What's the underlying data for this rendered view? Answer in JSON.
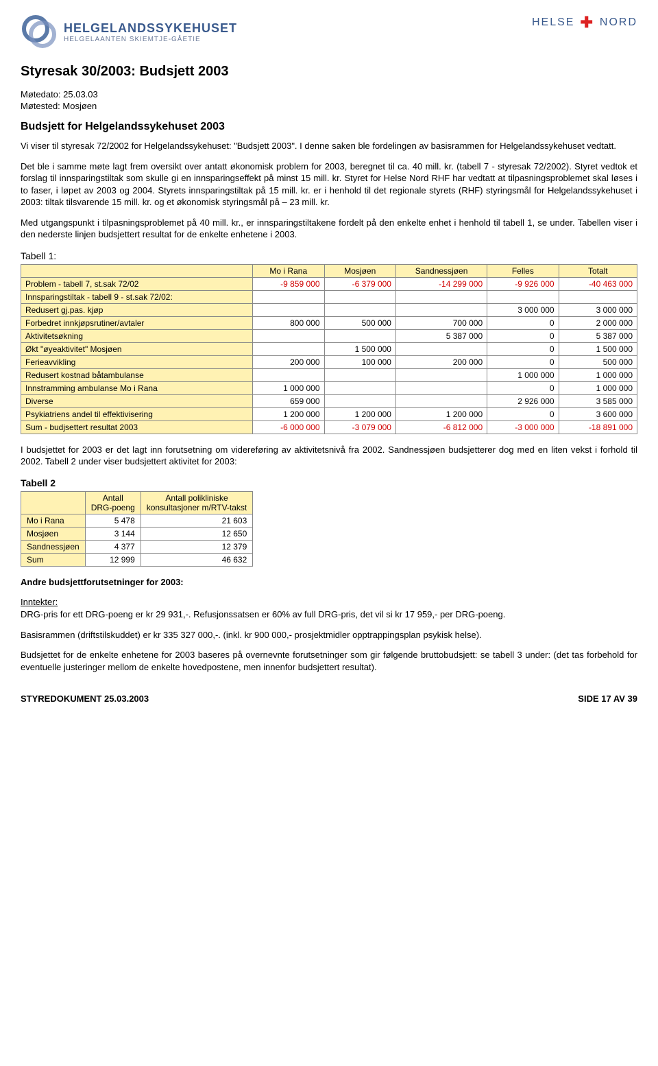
{
  "header": {
    "logo_main": "HELGELANDSSYKEHUSET",
    "logo_sub": "HELGELAANTEN SKIEMTJE-GÅETIE",
    "right_brand_1": "HELSE",
    "right_brand_2": "NORD"
  },
  "title": "Styresak 30/2003: Budsjett 2003",
  "meta": {
    "date_label": "Møtedato: 25.03.03",
    "place_label": "Møtested: Mosjøen"
  },
  "subtitle": "Budsjett for Helgelandssykehuset 2003",
  "para1": "Vi viser til styresak 72/2002 for Helgelandssykehuset: \"Budsjett 2003\". I denne saken ble fordelingen av basisrammen for Helgelandssykehuset vedtatt.",
  "para2": "Det ble i samme møte lagt frem oversikt over antatt økonomisk problem for 2003, beregnet til ca. 40 mill. kr. (tabell 7 - styresak 72/2002).  Styret vedtok et forslag til innsparingstiltak som skulle gi en innsparingseffekt på minst 15 mill. kr. Styret for Helse Nord RHF har vedtatt at tilpasningsproblemet skal løses i to faser, i løpet av 2003 og 2004. Styrets innsparingstiltak på 15 mill. kr. er i henhold til det regionale styrets (RHF) styringsmål for Helgelandssykehuset i 2003:  tiltak tilsvarende 15 mill. kr. og et økonomisk styringsmål på – 23 mill. kr.",
  "para3": "Med utgangspunkt i tilpasningsproblemet på 40 mill. kr., er innsparingstiltakene fordelt på den enkelte enhet i henhold til tabell 1, se under.  Tabellen viser i den nederste linjen budsjettert resultat for de enkelte enhetene i 2003.",
  "table1": {
    "label": "Tabell 1:",
    "columns": [
      "",
      "Mo i Rana",
      "Mosjøen",
      "Sandnessjøen",
      "Felles",
      "Totalt"
    ],
    "rows": [
      {
        "label": "Problem - tabell 7, st.sak 72/02",
        "vals": [
          "-9 859 000",
          "-6 379 000",
          "-14 299 000",
          "-9 926 000",
          "-40 463 000"
        ],
        "neg": true
      },
      {
        "label": "Innsparingstiltak - tabell 9 - st.sak 72/02:",
        "vals": [
          "",
          "",
          "",
          "",
          ""
        ]
      },
      {
        "label": "Redusert gj.pas. kjøp",
        "vals": [
          "",
          "",
          "",
          "3 000 000",
          "3 000 000"
        ]
      },
      {
        "label": "Forbedret innkjøpsrutiner/avtaler",
        "vals": [
          "800 000",
          "500 000",
          "700 000",
          "0",
          "2 000 000"
        ]
      },
      {
        "label": "Aktivitetsøkning",
        "vals": [
          "",
          "",
          "5 387 000",
          "0",
          "5 387 000"
        ]
      },
      {
        "label": "Økt \"øyeaktivitet\" Mosjøen",
        "vals": [
          "",
          "1 500 000",
          "",
          "0",
          "1 500 000"
        ]
      },
      {
        "label": "Ferieavvikling",
        "vals": [
          "200 000",
          "100 000",
          "200 000",
          "0",
          "500 000"
        ]
      },
      {
        "label": "Redusert kostnad båtambulanse",
        "vals": [
          "",
          "",
          "",
          "1 000 000",
          "1 000 000"
        ]
      },
      {
        "label": "Innstramming ambulanse Mo i Rana",
        "vals": [
          "1 000 000",
          "",
          "",
          "0",
          "1 000 000"
        ]
      },
      {
        "label": "Diverse",
        "vals": [
          "659 000",
          "",
          "",
          "2 926 000",
          "3 585 000"
        ]
      },
      {
        "label": "Psykiatriens andel til effektivisering",
        "vals": [
          "1 200 000",
          "1 200 000",
          "1 200 000",
          "0",
          "3 600 000"
        ]
      },
      {
        "label": "Sum - budjsettert resultat 2003",
        "vals": [
          "-6 000 000",
          "-3 079 000",
          "-6 812 000",
          "-3 000 000",
          "-18 891 000"
        ],
        "neg": true
      }
    ]
  },
  "para4": "I budsjettet for 2003 er det lagt inn forutsetning om videreføring av aktivitetsnivå fra 2002. Sandnessjøen budsjetterer dog med en liten vekst i forhold til 2002. Tabell 2 under viser budsjettert aktivitet for 2003:",
  "table2": {
    "label": "Tabell 2",
    "col_headers": [
      "",
      "Antall\nDRG-poeng",
      "Antall polikliniske\nkonsultasjoner m/RTV-takst"
    ],
    "rows": [
      {
        "label": "Mo i Rana",
        "a": "5 478",
        "b": "21 603"
      },
      {
        "label": "Mosjøen",
        "a": "3 144",
        "b": "12 650"
      },
      {
        "label": "Sandnessjøen",
        "a": "4 377",
        "b": "12 379"
      },
      {
        "label": "Sum",
        "a": "12 999",
        "b": "46 632"
      }
    ]
  },
  "other_heading": "Andre  budsjettforutsetninger for 2003:",
  "inntekter_label": "Inntekter:",
  "para5": "DRG-pris for ett DRG-poeng er kr 29 931,-. Refusjonssatsen er 60% av full DRG-pris, det vil si kr 17 959,- per DRG-poeng.",
  "para6": "Basisrammen (driftstilskuddet) er kr 335 327 000,-. (inkl. kr 900 000,- prosjektmidler opptrappingsplan psykisk helse).",
  "para7": "Budsjettet for de enkelte enhetene for 2003 baseres på overnevnte forutsetninger som gir følgende bruttobudsjett: se tabell 3 under: (det tas forbehold for eventuelle justeringer mellom de enkelte hovedpostene, men innenfor budsjettert resultat).",
  "footer": {
    "left": "STYREDOKUMENT 25.03.2003",
    "right": "SIDE 17 AV 39"
  }
}
